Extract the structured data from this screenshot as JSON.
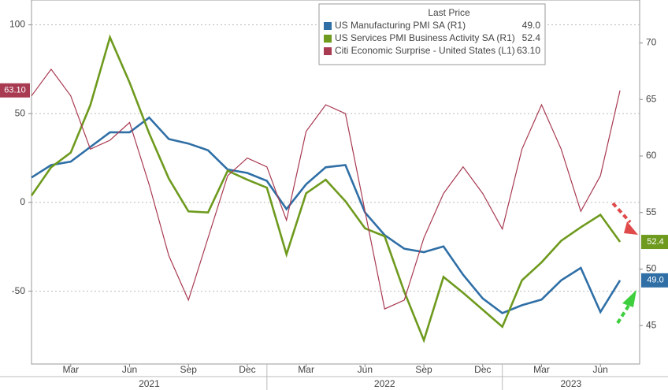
{
  "chart_data": {
    "type": "line",
    "legend_title": "Last Price",
    "x": [
      "2021-01",
      "2021-02",
      "2021-03",
      "2021-04",
      "2021-05",
      "2021-06",
      "2021-07",
      "2021-08",
      "2021-09",
      "2021-10",
      "2021-11",
      "2021-12",
      "2022-01",
      "2022-02",
      "2022-03",
      "2022-04",
      "2022-05",
      "2022-06",
      "2022-07",
      "2022-08",
      "2022-09",
      "2022-10",
      "2022-11",
      "2022-12",
      "2023-01",
      "2023-02",
      "2023-03",
      "2023-04",
      "2023-05",
      "2023-06",
      "2023-07"
    ],
    "xlim": [
      "2021-01",
      "2023-08"
    ],
    "xticks": [
      {
        "value": "2021-03",
        "label": "Mar"
      },
      {
        "value": "2021-06",
        "label": "Jun"
      },
      {
        "value": "2021-09",
        "label": "Sep"
      },
      {
        "value": "2021-12",
        "label": "Dec"
      },
      {
        "value": "2022-03",
        "label": "Mar"
      },
      {
        "value": "2022-06",
        "label": "Jun"
      },
      {
        "value": "2022-09",
        "label": "Sep"
      },
      {
        "value": "2022-12",
        "label": "Dec"
      },
      {
        "value": "2023-03",
        "label": "Mar"
      },
      {
        "value": "2023-06",
        "label": "Jun"
      }
    ],
    "year_labels": [
      "2021",
      "2022",
      "2023"
    ],
    "ylim": [
      -91,
      114
    ],
    "yticks": [
      -50,
      0,
      50,
      100
    ],
    "y2lim": [
      41.6,
      73.8
    ],
    "y2ticks": [
      45,
      50,
      55,
      60,
      65,
      70
    ],
    "grid": true,
    "series": [
      {
        "name": "US Manufacturing PMI SA  (R1)",
        "color": "#2f6fa6",
        "axis": "y2",
        "last_value_label": "49.0",
        "values": [
          58.1,
          59.2,
          59.5,
          60.8,
          62.1,
          62.1,
          63.4,
          61.5,
          61.1,
          60.5,
          58.8,
          58.5,
          57.8,
          55.3,
          57.5,
          59.0,
          59.2,
          55.0,
          53.0,
          51.8,
          51.5,
          52.0,
          49.5,
          47.4,
          46.1,
          46.8,
          47.3,
          49.0,
          50.1,
          46.2,
          49.0
        ]
      },
      {
        "name": "US Services PMI Business Activity SA  (R1)",
        "color": "#6e9a1e",
        "axis": "y2",
        "last_value_label": "52.4",
        "values": [
          56.5,
          59.0,
          60.3,
          64.5,
          70.5,
          66.5,
          62.0,
          58.0,
          55.1,
          55.0,
          58.7,
          57.9,
          57.2,
          51.3,
          56.7,
          57.9,
          56.0,
          53.6,
          52.9,
          48.0,
          43.7,
          49.3,
          47.9,
          46.4,
          44.9,
          49.0,
          50.6,
          52.5,
          53.7,
          54.8,
          52.4
        ]
      },
      {
        "name": "Citi Economic Surprise - United States  (L1)",
        "color": "#a83a52",
        "axis": "y",
        "last_value_label": "63.10",
        "values": [
          60,
          75,
          60,
          30,
          35,
          45,
          10,
          -30,
          -55,
          -20,
          15,
          25,
          20,
          -10,
          40,
          55,
          50,
          -5,
          -60,
          -55,
          -20,
          5,
          20,
          5,
          -15,
          30,
          55,
          30,
          -5,
          15,
          63.1
        ]
      }
    ]
  }
}
